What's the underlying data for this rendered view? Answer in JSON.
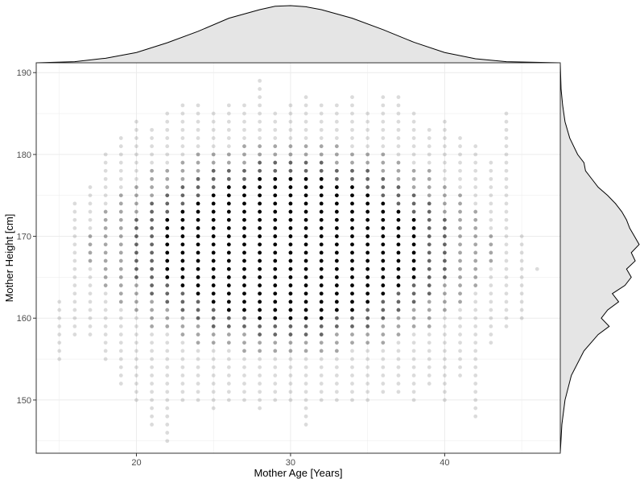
{
  "chart_data": {
    "type": "scatter",
    "title": "",
    "xlabel": "Mother Age [Years]",
    "ylabel": "Mother Height [cm]",
    "xlim": [
      13.5,
      47.5
    ],
    "ylim": [
      143.5,
      191.2
    ],
    "x_ticks": [
      20,
      30,
      40
    ],
    "y_ticks": [
      150,
      160,
      170,
      180,
      190
    ],
    "x_tick_labels": [
      "20",
      "30",
      "40"
    ],
    "y_tick_labels": [
      "150",
      "160",
      "170",
      "180",
      "190"
    ],
    "grid": true,
    "theme": "bw",
    "point_color": "#000000",
    "point_alpha": 0.12,
    "density_fill": "#e5e5e5",
    "point_columns": [
      {
        "x": 15,
        "y_min": 155,
        "y_max": 162
      },
      {
        "x": 16,
        "y_min": 158,
        "y_max": 174
      },
      {
        "x": 17,
        "y_min": 158,
        "y_max": 176
      },
      {
        "x": 18,
        "y_min": 155,
        "y_max": 180
      },
      {
        "x": 19,
        "y_min": 152,
        "y_max": 182
      },
      {
        "x": 20,
        "y_min": 150,
        "y_max": 184
      },
      {
        "x": 21,
        "y_min": 147,
        "y_max": 183
      },
      {
        "x": 22,
        "y_min": 145,
        "y_max": 185
      },
      {
        "x": 23,
        "y_min": 150,
        "y_max": 186
      },
      {
        "x": 24,
        "y_min": 150,
        "y_max": 186
      },
      {
        "x": 25,
        "y_min": 149,
        "y_max": 185
      },
      {
        "x": 26,
        "y_min": 150,
        "y_max": 186
      },
      {
        "x": 27,
        "y_min": 150,
        "y_max": 186
      },
      {
        "x": 28,
        "y_min": 149,
        "y_max": 189
      },
      {
        "x": 29,
        "y_min": 150,
        "y_max": 185
      },
      {
        "x": 30,
        "y_min": 150,
        "y_max": 186
      },
      {
        "x": 31,
        "y_min": 147,
        "y_max": 187
      },
      {
        "x": 32,
        "y_min": 150,
        "y_max": 186
      },
      {
        "x": 33,
        "y_min": 150,
        "y_max": 186
      },
      {
        "x": 34,
        "y_min": 150,
        "y_max": 187
      },
      {
        "x": 35,
        "y_min": 150,
        "y_max": 185
      },
      {
        "x": 36,
        "y_min": 151,
        "y_max": 187
      },
      {
        "x": 37,
        "y_min": 151,
        "y_max": 187
      },
      {
        "x": 38,
        "y_min": 150,
        "y_max": 185
      },
      {
        "x": 39,
        "y_min": 152,
        "y_max": 183
      },
      {
        "x": 40,
        "y_min": 150,
        "y_max": 184
      },
      {
        "x": 41,
        "y_min": 153,
        "y_max": 182
      },
      {
        "x": 42,
        "y_min": 148,
        "y_max": 181
      },
      {
        "x": 43,
        "y_min": 157,
        "y_max": 179
      },
      {
        "x": 44,
        "y_min": 159,
        "y_max": 185
      },
      {
        "x": 45,
        "y_min": 160,
        "y_max": 170
      },
      {
        "x": 46,
        "y_min": 166,
        "y_max": 166
      }
    ],
    "x_density": {
      "x": [
        13.5,
        16,
        18,
        20,
        22,
        24,
        26,
        28,
        29,
        30,
        31,
        32,
        34,
        36,
        38,
        40,
        42,
        44,
        47.5
      ],
      "density": [
        0.0,
        0.02,
        0.08,
        0.18,
        0.35,
        0.55,
        0.78,
        0.93,
        0.99,
        1.0,
        0.98,
        0.93,
        0.78,
        0.58,
        0.36,
        0.18,
        0.07,
        0.02,
        0.0
      ]
    },
    "y_density": {
      "y": [
        143.5,
        147,
        150,
        153,
        156,
        158,
        159,
        160,
        161,
        162,
        163,
        164,
        165,
        166,
        167,
        168,
        169,
        170,
        171,
        172,
        173,
        174,
        175,
        176,
        177,
        178,
        179,
        180,
        182,
        184,
        186,
        188,
        191.2
      ],
      "density": [
        0.0,
        0.02,
        0.06,
        0.14,
        0.3,
        0.48,
        0.62,
        0.52,
        0.6,
        0.74,
        0.66,
        0.82,
        0.9,
        0.84,
        0.95,
        0.9,
        1.0,
        0.94,
        0.88,
        0.84,
        0.78,
        0.7,
        0.6,
        0.48,
        0.4,
        0.32,
        0.3,
        0.22,
        0.12,
        0.06,
        0.03,
        0.01,
        0.0
      ]
    }
  }
}
